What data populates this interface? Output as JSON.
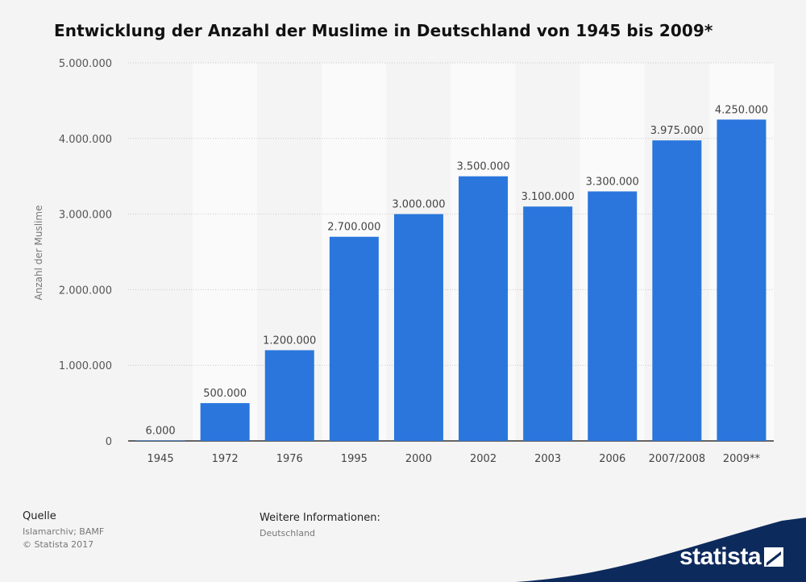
{
  "title": "Entwicklung der Anzahl der Muslime in Deutschland von 1945 bis 2009*",
  "source": {
    "heading": "Quelle",
    "line1": "Islamarchiv; BAMF",
    "line2": "© Statista 2017"
  },
  "info": {
    "heading": "Weitere Informationen:",
    "text": "Deutschland"
  },
  "brand": {
    "name": "statista",
    "color": "#0d2a5c",
    "icon": "statista-logo-icon"
  },
  "colors": {
    "bar": "#2a76dd",
    "background": "#f4f4f4",
    "band": "#fafafa"
  },
  "chart_data": {
    "type": "bar",
    "title": "Entwicklung der Anzahl der Muslime in Deutschland von 1945 bis 2009*",
    "xlabel": "",
    "ylabel": "Anzahl der Muslime",
    "ylim": [
      0,
      5000000
    ],
    "yticks": [
      0,
      1000000,
      2000000,
      3000000,
      4000000,
      5000000
    ],
    "ytick_labels": [
      "0",
      "1.000.000",
      "2.000.000",
      "3.000.000",
      "4.000.000",
      "5.000.000"
    ],
    "grid": true,
    "legend": "none",
    "categories": [
      "1945",
      "1972",
      "1976",
      "1995",
      "2000",
      "2002",
      "2003",
      "2006",
      "2007/2008",
      "2009**"
    ],
    "values": [
      6000,
      500000,
      1200000,
      2700000,
      3000000,
      3500000,
      3100000,
      3300000,
      3975000,
      4250000
    ],
    "value_labels": [
      "6.000",
      "500.000",
      "1.200.000",
      "2.700.000",
      "3.000.000",
      "3.500.000",
      "3.100.000",
      "3.300.000",
      "3.975.000",
      "4.250.000"
    ]
  }
}
